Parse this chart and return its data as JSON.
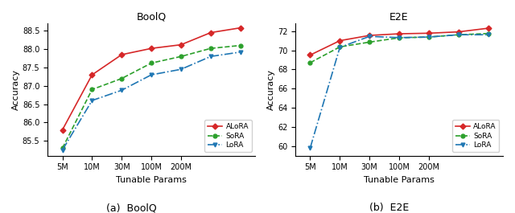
{
  "boolq": {
    "title": "BoolQ",
    "xlabel": "Tunable Params",
    "ylabel": "Accuracy",
    "x_vals": [
      1,
      2,
      3,
      4,
      5,
      6,
      7
    ],
    "x_tick_pos": [
      1,
      2,
      3,
      4,
      5,
      6,
      7
    ],
    "x_tick_labels": [
      "5M",
      "10M",
      "30M",
      "100M",
      "200M",
      "",
      ""
    ],
    "alora": [
      85.8,
      87.3,
      87.85,
      88.02,
      88.12,
      88.45,
      88.58
    ],
    "sora": [
      85.3,
      86.9,
      87.2,
      87.62,
      87.8,
      88.02,
      88.1
    ],
    "lora": [
      85.25,
      86.6,
      86.88,
      87.3,
      87.45,
      87.8,
      87.92
    ],
    "ylim": [
      85.1,
      88.7
    ],
    "ytick_vals": [
      85.5,
      86.0,
      86.5,
      87.0,
      87.5,
      88.0,
      88.5
    ]
  },
  "e2e": {
    "title": "E2E",
    "xlabel": "Tunable Params",
    "ylabel": "Accuracy",
    "x_vals": [
      1,
      2,
      3,
      4,
      5,
      6,
      7
    ],
    "x_tick_pos": [
      1,
      2,
      3,
      4,
      5,
      6,
      7
    ],
    "x_tick_labels": [
      "5M",
      "10M",
      "30M",
      "100M",
      "200M",
      "",
      ""
    ],
    "alora": [
      69.5,
      71.0,
      71.55,
      71.72,
      71.78,
      71.92,
      72.3
    ],
    "sora": [
      68.7,
      70.35,
      70.85,
      71.3,
      71.38,
      71.62,
      71.75
    ],
    "lora": [
      59.8,
      70.3,
      71.45,
      71.32,
      71.38,
      71.62,
      71.62
    ],
    "ylim": [
      59.0,
      72.8
    ],
    "ytick_vals": [
      60.0,
      62.0,
      64.0,
      66.0,
      68.0,
      70.0,
      72.0
    ]
  },
  "alora_color": "#d62728",
  "sora_color": "#2ca02c",
  "lora_color": "#1f77b4",
  "caption_boolq": "(a)  BoolQ",
  "caption_e2e": "(b)  E2E",
  "fig_width": 6.4,
  "fig_height": 2.65
}
